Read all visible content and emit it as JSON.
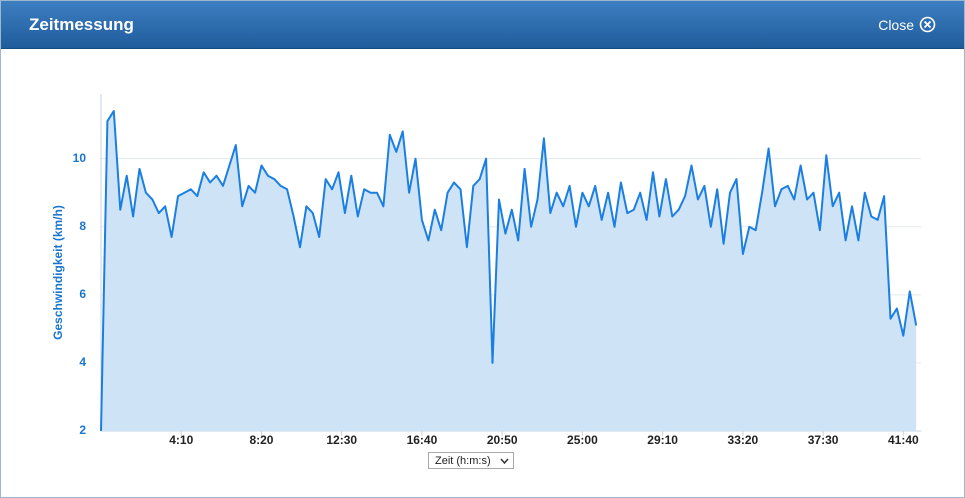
{
  "header": {
    "title": "Zeitmessung",
    "close": "Close"
  },
  "chart_data": {
    "type": "area",
    "y_label": "Geschwindigkeit (km/h)",
    "x_selector": "Zeit (h:m:s)",
    "color": "#1a7fe0",
    "fill": "#cfe3f7",
    "grid": true,
    "xlim": [
      0,
      2555
    ],
    "ylim": [
      2,
      11.9
    ],
    "yticks": [
      2,
      4,
      6,
      8,
      10
    ],
    "xticks": [
      {
        "value": 250,
        "label": "4:10"
      },
      {
        "value": 500,
        "label": "8:20"
      },
      {
        "value": 750,
        "label": "12:30"
      },
      {
        "value": 1000,
        "label": "16:40"
      },
      {
        "value": 1250,
        "label": "20:50"
      },
      {
        "value": 1500,
        "label": "25:00"
      },
      {
        "value": 1750,
        "label": "29:10"
      },
      {
        "value": 2000,
        "label": "33:20"
      },
      {
        "value": 2250,
        "label": "37:30"
      },
      {
        "value": 2500,
        "label": "41:40"
      }
    ],
    "x": [
      0,
      20,
      40,
      60,
      80,
      100,
      120,
      140,
      160,
      180,
      200,
      220,
      240,
      260,
      280,
      300,
      320,
      340,
      360,
      380,
      400,
      420,
      440,
      460,
      480,
      500,
      520,
      540,
      560,
      580,
      600,
      620,
      640,
      660,
      680,
      700,
      720,
      740,
      760,
      780,
      800,
      820,
      840,
      860,
      880,
      900,
      920,
      940,
      960,
      980,
      1000,
      1020,
      1040,
      1060,
      1080,
      1100,
      1120,
      1140,
      1160,
      1180,
      1200,
      1220,
      1240,
      1260,
      1280,
      1300,
      1320,
      1340,
      1360,
      1380,
      1400,
      1420,
      1440,
      1460,
      1480,
      1500,
      1520,
      1540,
      1560,
      1580,
      1600,
      1620,
      1640,
      1660,
      1680,
      1700,
      1720,
      1740,
      1760,
      1780,
      1800,
      1820,
      1840,
      1860,
      1880,
      1900,
      1920,
      1940,
      1960,
      1980,
      2000,
      2020,
      2040,
      2060,
      2080,
      2100,
      2120,
      2140,
      2160,
      2180,
      2200,
      2220,
      2240,
      2260,
      2280,
      2300,
      2320,
      2340,
      2360,
      2380,
      2400,
      2420,
      2440,
      2460,
      2480,
      2500,
      2520,
      2540
    ],
    "values": [
      2,
      11.1,
      11.4,
      8.5,
      9.5,
      8.3,
      9.7,
      9.0,
      8.8,
      8.4,
      8.6,
      7.7,
      8.9,
      9.0,
      9.1,
      8.9,
      9.6,
      9.3,
      9.5,
      9.2,
      9.8,
      10.4,
      8.6,
      9.2,
      9.0,
      9.8,
      9.5,
      9.4,
      9.2,
      9.1,
      8.3,
      7.4,
      8.6,
      8.4,
      7.7,
      9.4,
      9.1,
      9.6,
      8.4,
      9.5,
      8.3,
      9.1,
      9.0,
      9.0,
      8.6,
      10.7,
      10.2,
      10.8,
      9.0,
      10.0,
      8.2,
      7.6,
      8.5,
      7.9,
      9.0,
      9.3,
      9.1,
      7.4,
      9.2,
      9.4,
      10.0,
      4.0,
      8.8,
      7.8,
      8.5,
      7.6,
      9.7,
      8.0,
      8.8,
      10.6,
      8.4,
      9.0,
      8.6,
      9.2,
      8.0,
      9.0,
      8.6,
      9.2,
      8.2,
      9.0,
      8.0,
      9.3,
      8.4,
      8.5,
      9.0,
      8.2,
      9.6,
      8.3,
      9.4,
      8.3,
      8.5,
      8.9,
      9.8,
      8.8,
      9.2,
      8.0,
      9.1,
      7.5,
      9.0,
      9.4,
      7.2,
      8.0,
      7.9,
      9.0,
      10.3,
      8.6,
      9.1,
      9.2,
      8.8,
      9.8,
      8.8,
      9.0,
      7.9,
      10.1,
      8.6,
      9.0,
      7.6,
      8.6,
      7.6,
      9.0,
      8.3,
      8.2,
      8.9,
      5.3,
      5.6,
      4.8,
      6.1,
      5.1
    ]
  }
}
